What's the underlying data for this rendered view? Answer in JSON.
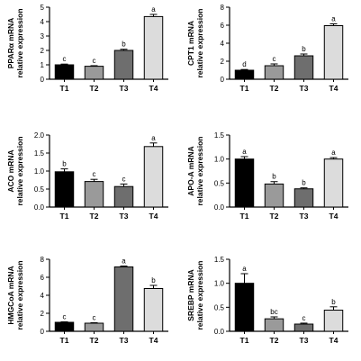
{
  "chart_data": [
    {
      "type": "bar",
      "ylabel": [
        "PPARα mRNA",
        "relative expression"
      ],
      "categories": [
        "T1",
        "T2",
        "T3",
        "T4"
      ],
      "values": [
        1.0,
        0.9,
        2.0,
        4.35
      ],
      "errors": [
        0.05,
        0.04,
        0.08,
        0.15
      ],
      "letters": [
        "c",
        "c",
        "b",
        "a"
      ],
      "ylim": [
        0,
        5
      ],
      "yticks": [
        0,
        1,
        2,
        3,
        4,
        5
      ],
      "ytick_labels": [
        "0",
        "1",
        "2",
        "3",
        "4",
        "5"
      ]
    },
    {
      "type": "bar",
      "ylabel": [
        "CPT1 mRNA",
        "relative expression"
      ],
      "categories": [
        "T1",
        "T2",
        "T3",
        "T4"
      ],
      "values": [
        1.0,
        1.5,
        2.6,
        5.95
      ],
      "errors": [
        0.08,
        0.2,
        0.2,
        0.2
      ],
      "letters": [
        "d",
        "c",
        "b",
        "a"
      ],
      "ylim": [
        0,
        8
      ],
      "yticks": [
        0,
        2,
        4,
        6,
        8
      ],
      "ytick_labels": [
        "0",
        "2",
        "4",
        "6",
        "8"
      ]
    },
    {
      "type": "bar",
      "ylabel": [
        "ACO mRNA",
        "relative expression"
      ],
      "categories": [
        "T1",
        "T2",
        "T3",
        "T4"
      ],
      "values": [
        0.98,
        0.71,
        0.57,
        1.68
      ],
      "errors": [
        0.08,
        0.06,
        0.07,
        0.1
      ],
      "letters": [
        "b",
        "c",
        "c",
        "a"
      ],
      "ylim": [
        0,
        2.0
      ],
      "yticks": [
        0,
        0.5,
        1.0,
        1.5,
        2.0
      ],
      "ytick_labels": [
        "0.0",
        "0.5",
        "1.0",
        "1.5",
        "2.0"
      ]
    },
    {
      "type": "bar",
      "ylabel": [
        "APO-A mRNA",
        "relative expression"
      ],
      "categories": [
        "T1",
        "T2",
        "T3",
        "T4"
      ],
      "values": [
        1.0,
        0.48,
        0.38,
        1.0
      ],
      "errors": [
        0.05,
        0.05,
        0.02,
        0.03
      ],
      "letters": [
        "a",
        "b",
        "b",
        "a"
      ],
      "ylim": [
        0,
        1.5
      ],
      "yticks": [
        0,
        0.5,
        1.0,
        1.5
      ],
      "ytick_labels": [
        "0.0",
        "0.5",
        "1.0",
        "1.5"
      ]
    },
    {
      "type": "bar",
      "ylabel": [
        "HMGCoA mRNA",
        "relative expression"
      ],
      "categories": [
        "T1",
        "T2",
        "T3",
        "T4"
      ],
      "values": [
        1.0,
        0.9,
        7.15,
        4.75
      ],
      "errors": [
        0.05,
        0.05,
        0.1,
        0.35
      ],
      "letters": [
        "c",
        "c",
        "a",
        "b"
      ],
      "ylim": [
        0,
        8
      ],
      "yticks": [
        0,
        2,
        4,
        6,
        8
      ],
      "ytick_labels": [
        "0",
        "2",
        "4",
        "6",
        "8"
      ]
    },
    {
      "type": "bar",
      "ylabel": [
        "SREBP mRNA",
        "relative expression"
      ],
      "categories": [
        "T1",
        "T2",
        "T3",
        "T4"
      ],
      "values": [
        1.0,
        0.26,
        0.15,
        0.44
      ],
      "errors": [
        0.2,
        0.04,
        0.02,
        0.07
      ],
      "letters": [
        "a",
        "bc",
        "c",
        "b"
      ],
      "ylim": [
        0,
        1.5
      ],
      "yticks": [
        0,
        0.5,
        1.0,
        1.5
      ],
      "ytick_labels": [
        "0.0",
        "0.5",
        "1.0",
        "1.5"
      ]
    }
  ],
  "colors": {
    "bar_fills": [
      "#000000",
      "#9a9a9a",
      "#6e6e6e",
      "#dcdcdc"
    ],
    "bar_outline": "#000000",
    "axis": "#000000"
  }
}
